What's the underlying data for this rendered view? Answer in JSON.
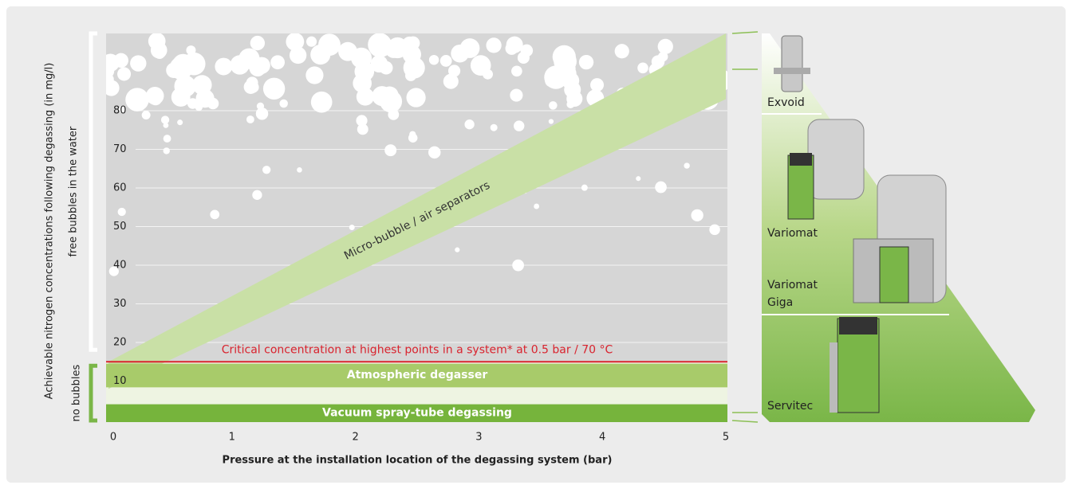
{
  "chart_data": {
    "type": "band",
    "y_label": "Achievable nitrogen concentrations following degassing (in mg/l)",
    "x_label": "Pressure at the installation location of the degassing system (bar)",
    "xlim": [
      0,
      5
    ],
    "xticks": [
      0,
      1,
      2,
      3,
      4,
      5
    ],
    "ylim": [
      0,
      100
    ],
    "yticks": [
      10,
      20,
      30,
      40,
      50,
      60,
      70,
      80
    ],
    "grid": true,
    "regions": [
      {
        "label": "free bubbles in the water",
        "color": "#ffffff"
      },
      {
        "label": "no bubbles",
        "color": "#7ab648"
      }
    ],
    "critical": {
      "label": "Critical concentration at highest points in a system* at 0.5 bar / 70 °C",
      "value": 15,
      "color": "#d9232e"
    },
    "bands": [
      {
        "name": "Atmospheric degasser",
        "range": [
          9,
          14.5
        ],
        "color": "#a8cb6a"
      },
      {
        "name": "Vacuum spray-tube degassing",
        "range": [
          0,
          4
        ],
        "color": "#76b43c"
      }
    ],
    "wedge": {
      "name": "Micro-bubble / air separators",
      "x": [
        0,
        5
      ],
      "lower": [
        8,
        83
      ],
      "upper": [
        15,
        100
      ],
      "color": "#c9e0a6"
    },
    "products": [
      "Exvoid",
      "Variomat",
      "Variomat Giga",
      "Servitec"
    ]
  }
}
